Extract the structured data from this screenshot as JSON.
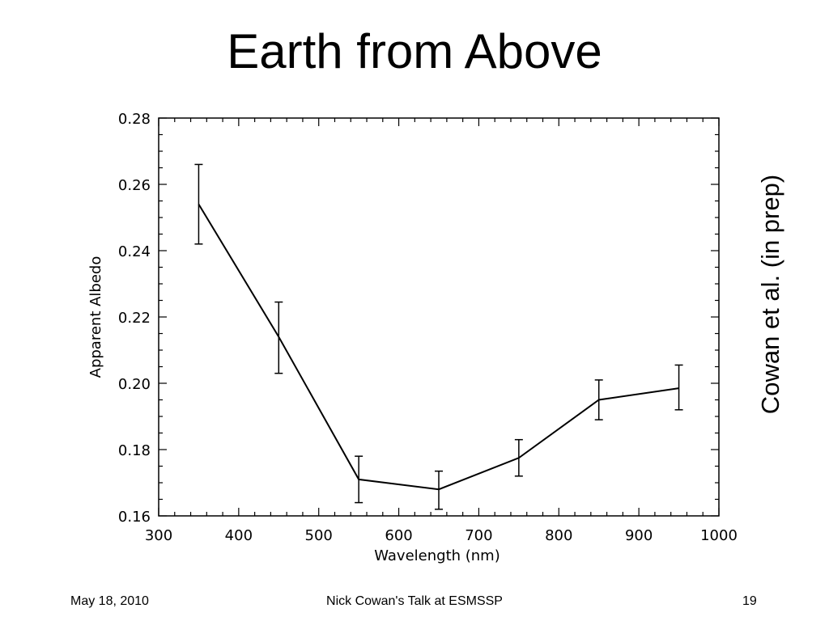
{
  "slide": {
    "title": "Earth from Above",
    "citation": "Cowan et al. (in prep)",
    "footer": {
      "date": "May 18, 2010",
      "talk": "Nick Cowan's Talk at ESMSSP",
      "page": "19"
    }
  },
  "chart_data": {
    "type": "line",
    "title": "",
    "xlabel": "Wavelength (nm)",
    "ylabel": "Apparent Albedo",
    "xlim": [
      300,
      1000
    ],
    "ylim": [
      0.16,
      0.28
    ],
    "xticks": [
      300,
      400,
      500,
      600,
      700,
      800,
      900,
      1000
    ],
    "yticks": [
      0.16,
      0.18,
      0.2,
      0.22,
      0.24,
      0.26,
      0.28
    ],
    "ytick_labels": [
      "0.16",
      "0.18",
      "0.20",
      "0.22",
      "0.24",
      "0.26",
      "0.28"
    ],
    "grid": false,
    "series": [
      {
        "x": [
          350,
          450,
          550,
          650,
          750,
          850,
          950
        ],
        "y": [
          0.254,
          0.214,
          0.171,
          0.168,
          0.1775,
          0.195,
          0.1985
        ],
        "err_low": [
          0.242,
          0.203,
          0.164,
          0.162,
          0.172,
          0.189,
          0.192
        ],
        "err_high": [
          0.266,
          0.2245,
          0.178,
          0.1735,
          0.183,
          0.201,
          0.2055
        ]
      }
    ]
  }
}
